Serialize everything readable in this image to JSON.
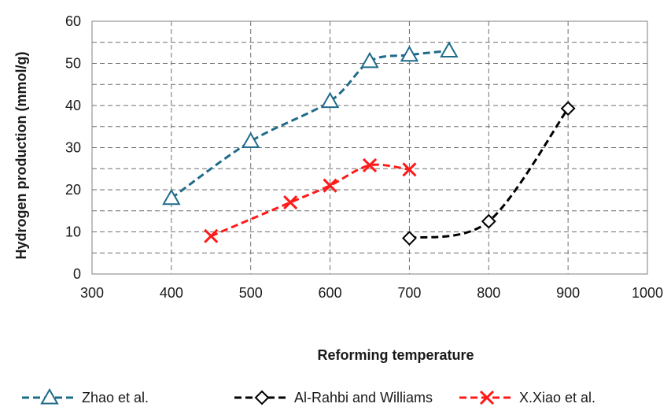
{
  "chart_data": {
    "type": "line",
    "title": "",
    "xlabel": "Reforming temperature",
    "ylabel": "Hydrogen production (mmol/g)",
    "xlim": [
      300,
      1000
    ],
    "ylim": [
      0,
      60
    ],
    "x_ticks": [
      300,
      400,
      500,
      600,
      700,
      800,
      900,
      1000
    ],
    "y_ticks": [
      0,
      10,
      20,
      30,
      40,
      50,
      60
    ],
    "grid": {
      "major": true,
      "minor_y_dashed": true,
      "vertical_dashed": true
    },
    "legend_position": "bottom",
    "series": [
      {
        "name": "Zhao et al.",
        "color": "#1f6b8a",
        "marker": "triangle",
        "line_style": "dashed",
        "x": [
          400,
          500,
          600,
          650,
          700,
          750
        ],
        "y": [
          18,
          31.5,
          41,
          50.5,
          52,
          53
        ]
      },
      {
        "name": "Al-Rahbi and Williams",
        "color": "#000000",
        "marker": "diamond",
        "line_style": "dashed",
        "x": [
          700,
          800,
          900
        ],
        "y": [
          8.5,
          12.5,
          39.3
        ]
      },
      {
        "name": "X.Xiao et al.",
        "color": "#ff1a1a",
        "marker": "x",
        "line_style": "dashed",
        "x": [
          450,
          550,
          600,
          650,
          700
        ],
        "y": [
          9,
          17,
          21,
          25.8,
          24.8
        ]
      }
    ]
  }
}
